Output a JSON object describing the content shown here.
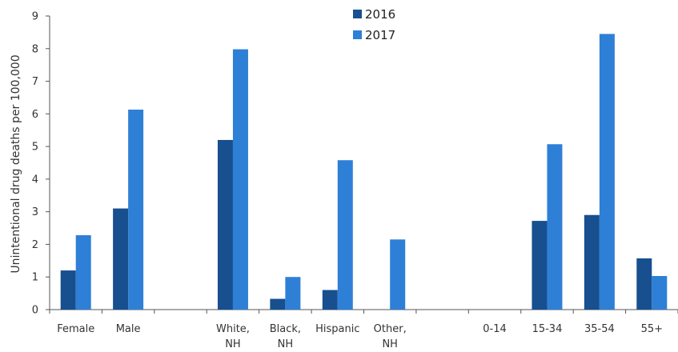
{
  "chart_data": {
    "type": "bar",
    "title": "",
    "xlabel": "",
    "ylabel": "Unintentional drug deaths per 100,000",
    "ylim": [
      0,
      9
    ],
    "yticks": [
      0,
      1,
      2,
      3,
      4,
      5,
      6,
      7,
      8,
      9
    ],
    "grid": false,
    "legend_position": "top-center",
    "categories": [
      [
        "Female"
      ],
      [
        "Male"
      ],
      [
        ""
      ],
      [
        "White,",
        "NH"
      ],
      [
        "Black,",
        "NH"
      ],
      [
        "Hispanic"
      ],
      [
        "Other,",
        "NH"
      ],
      [
        ""
      ],
      [
        "0-14"
      ],
      [
        "15-34"
      ],
      [
        "35-54"
      ],
      [
        "55+"
      ]
    ],
    "series": [
      {
        "name": "2016",
        "color": "#174f8f",
        "values": [
          1.2,
          3.1,
          null,
          5.2,
          0.33,
          0.6,
          null,
          null,
          null,
          2.72,
          2.9,
          1.57
        ]
      },
      {
        "name": "2017",
        "color": "#2e7fd6",
        "values": [
          2.28,
          6.13,
          null,
          7.98,
          1.0,
          4.58,
          2.15,
          null,
          null,
          5.07,
          8.45,
          1.03
        ]
      }
    ]
  }
}
